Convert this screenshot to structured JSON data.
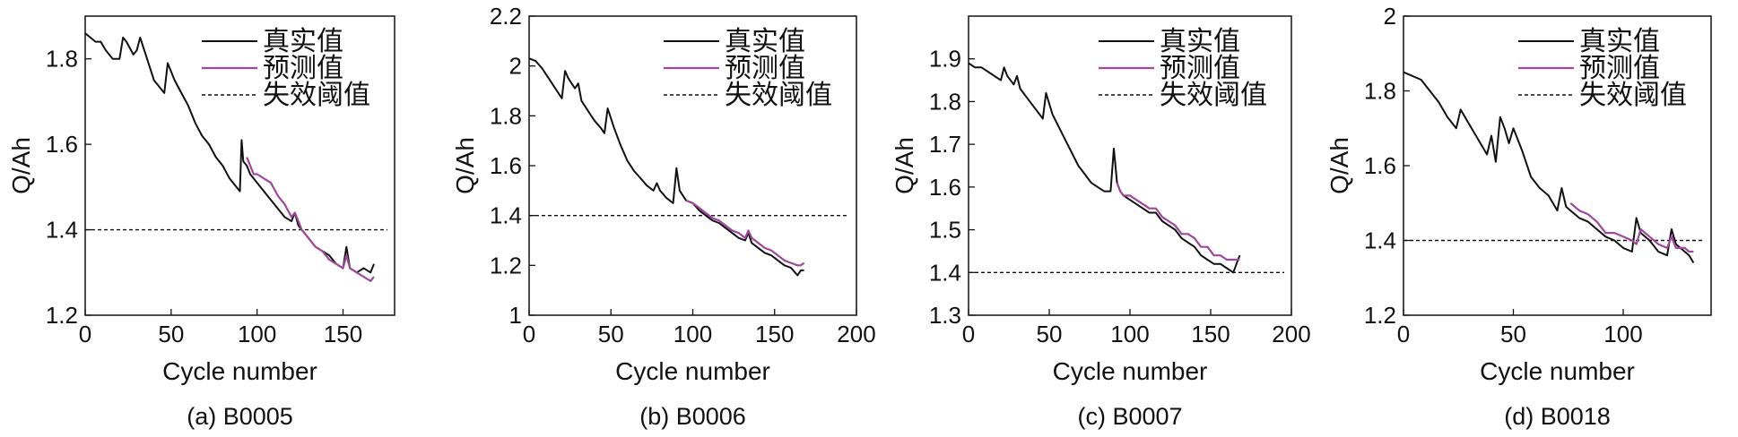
{
  "colors": {
    "actual": "#111111",
    "predicted": "#a0479b",
    "threshold": "#111111"
  },
  "chart_data": [
    {
      "type": "line",
      "caption": "(a) B0005",
      "xlabel": "Cycle number",
      "ylabel": "Q/Ah",
      "xlim": [
        0,
        180
      ],
      "ylim": [
        1.2,
        1.9
      ],
      "xticks": [
        "0",
        "50",
        "100",
        "150"
      ],
      "xtick_values": [
        0,
        50,
        100,
        150
      ],
      "yticks": [
        "1.2",
        "1.4",
        "1.6",
        "1.8"
      ],
      "ytick_values": [
        1.2,
        1.4,
        1.6,
        1.8
      ],
      "legend": [
        "真实值",
        "预测值",
        "失效阈值"
      ],
      "threshold": 1.4,
      "series": [
        {
          "name": "真实值",
          "x": [
            0,
            3,
            6,
            9,
            12,
            16,
            20,
            22,
            24,
            28,
            30,
            32,
            36,
            40,
            46,
            48,
            52,
            56,
            60,
            64,
            68,
            72,
            76,
            80,
            84,
            88,
            90,
            91,
            92,
            94,
            96,
            98,
            100,
            104,
            108,
            112,
            116,
            120,
            122,
            124,
            126,
            130,
            134,
            138,
            142,
            146,
            150,
            152,
            154,
            158,
            162,
            166,
            168
          ],
          "y": [
            1.86,
            1.85,
            1.84,
            1.84,
            1.82,
            1.8,
            1.8,
            1.85,
            1.84,
            1.81,
            1.82,
            1.85,
            1.8,
            1.75,
            1.72,
            1.79,
            1.75,
            1.72,
            1.69,
            1.65,
            1.62,
            1.6,
            1.57,
            1.55,
            1.52,
            1.5,
            1.49,
            1.61,
            1.56,
            1.55,
            1.53,
            1.52,
            1.51,
            1.49,
            1.47,
            1.45,
            1.43,
            1.42,
            1.44,
            1.41,
            1.4,
            1.38,
            1.36,
            1.35,
            1.34,
            1.32,
            1.31,
            1.36,
            1.31,
            1.3,
            1.31,
            1.3,
            1.32
          ]
        },
        {
          "name": "预测值",
          "x": [
            94,
            96,
            98,
            100,
            104,
            108,
            112,
            116,
            120,
            122,
            124,
            126,
            130,
            134,
            138,
            142,
            146,
            150,
            152,
            154,
            158,
            162,
            166,
            168
          ],
          "y": [
            1.57,
            1.55,
            1.53,
            1.53,
            1.52,
            1.51,
            1.48,
            1.46,
            1.43,
            1.44,
            1.42,
            1.4,
            1.38,
            1.36,
            1.35,
            1.33,
            1.32,
            1.31,
            1.34,
            1.31,
            1.3,
            1.29,
            1.28,
            1.29
          ]
        }
      ]
    },
    {
      "type": "line",
      "caption": "(b) B0006",
      "xlabel": "Cycle number",
      "ylabel": "Q/Ah",
      "xlim": [
        0,
        200
      ],
      "ylim": [
        1.0,
        2.2
      ],
      "xticks": [
        "0",
        "50",
        "100",
        "150",
        "200"
      ],
      "xtick_values": [
        0,
        50,
        100,
        150,
        200
      ],
      "yticks": [
        "1",
        "1.2",
        "1.4",
        "1.6",
        "1.8",
        "2",
        "2.2"
      ],
      "ytick_values": [
        1.0,
        1.2,
        1.4,
        1.6,
        1.8,
        2.0,
        2.2
      ],
      "legend": [
        "真实值",
        "预测值",
        "失效阈值"
      ],
      "threshold": 1.4,
      "series": [
        {
          "name": "真实值",
          "x": [
            0,
            4,
            8,
            12,
            16,
            20,
            22,
            24,
            28,
            30,
            32,
            36,
            40,
            44,
            46,
            48,
            52,
            56,
            60,
            64,
            68,
            72,
            76,
            78,
            80,
            84,
            88,
            90,
            92,
            94,
            96,
            100,
            104,
            108,
            112,
            116,
            120,
            124,
            128,
            132,
            134,
            136,
            140,
            144,
            148,
            152,
            156,
            160,
            164,
            166,
            168
          ],
          "y": [
            2.03,
            2.02,
            1.99,
            1.95,
            1.91,
            1.87,
            1.98,
            1.95,
            1.91,
            1.93,
            1.86,
            1.82,
            1.78,
            1.75,
            1.73,
            1.83,
            1.75,
            1.68,
            1.62,
            1.58,
            1.55,
            1.52,
            1.5,
            1.53,
            1.5,
            1.47,
            1.45,
            1.59,
            1.5,
            1.48,
            1.46,
            1.45,
            1.42,
            1.4,
            1.38,
            1.37,
            1.35,
            1.33,
            1.31,
            1.3,
            1.33,
            1.29,
            1.27,
            1.25,
            1.24,
            1.22,
            1.2,
            1.19,
            1.16,
            1.18,
            1.18
          ]
        },
        {
          "name": "预测值",
          "x": [
            96,
            100,
            104,
            108,
            112,
            116,
            120,
            124,
            128,
            132,
            134,
            136,
            140,
            144,
            148,
            152,
            156,
            160,
            164,
            166,
            168
          ],
          "y": [
            1.46,
            1.45,
            1.43,
            1.41,
            1.39,
            1.38,
            1.36,
            1.34,
            1.33,
            1.31,
            1.34,
            1.31,
            1.29,
            1.27,
            1.26,
            1.24,
            1.22,
            1.21,
            1.2,
            1.2,
            1.21
          ]
        }
      ]
    },
    {
      "type": "line",
      "caption": "(c) B0007",
      "xlabel": "Cycle number",
      "ylabel": "Q/Ah",
      "xlim": [
        0,
        200
      ],
      "ylim": [
        1.3,
        2.0
      ],
      "xticks": [
        "0",
        "50",
        "100",
        "150",
        "200"
      ],
      "xtick_values": [
        0,
        50,
        100,
        150,
        200
      ],
      "yticks": [
        "1.3",
        "1.4",
        "1.5",
        "1.6",
        "1.7",
        "1.8",
        "1.9"
      ],
      "ytick_values": [
        1.3,
        1.4,
        1.5,
        1.6,
        1.7,
        1.8,
        1.9
      ],
      "legend": [
        "真实值",
        "预测值",
        "失效阈值"
      ],
      "threshold": 1.4,
      "series": [
        {
          "name": "真实值",
          "x": [
            0,
            4,
            8,
            12,
            16,
            20,
            22,
            24,
            28,
            30,
            32,
            36,
            40,
            44,
            46,
            48,
            52,
            56,
            60,
            64,
            68,
            72,
            76,
            80,
            84,
            88,
            90,
            92,
            94,
            96,
            100,
            104,
            108,
            112,
            116,
            120,
            124,
            128,
            132,
            136,
            140,
            144,
            148,
            152,
            156,
            160,
            164,
            166,
            168
          ],
          "y": [
            1.89,
            1.88,
            1.88,
            1.87,
            1.86,
            1.85,
            1.88,
            1.86,
            1.84,
            1.86,
            1.83,
            1.81,
            1.79,
            1.77,
            1.76,
            1.82,
            1.77,
            1.74,
            1.71,
            1.68,
            1.65,
            1.63,
            1.61,
            1.6,
            1.59,
            1.59,
            1.69,
            1.61,
            1.59,
            1.58,
            1.57,
            1.56,
            1.55,
            1.54,
            1.54,
            1.52,
            1.51,
            1.5,
            1.48,
            1.47,
            1.46,
            1.44,
            1.43,
            1.42,
            1.42,
            1.41,
            1.4,
            1.42,
            1.44
          ]
        },
        {
          "name": "预测值",
          "x": [
            92,
            94,
            96,
            100,
            104,
            108,
            112,
            116,
            120,
            124,
            128,
            132,
            136,
            140,
            144,
            148,
            152,
            156,
            160,
            164,
            166,
            168
          ],
          "y": [
            1.61,
            1.59,
            1.58,
            1.58,
            1.57,
            1.56,
            1.55,
            1.55,
            1.53,
            1.52,
            1.51,
            1.49,
            1.49,
            1.48,
            1.46,
            1.46,
            1.44,
            1.44,
            1.43,
            1.43,
            1.43,
            1.43
          ]
        }
      ]
    },
    {
      "type": "line",
      "caption": "(d) B0018",
      "xlabel": "Cycle number",
      "ylabel": "Q/Ah",
      "xlim": [
        0,
        140
      ],
      "ylim": [
        1.2,
        2.0
      ],
      "xticks": [
        "0",
        "50",
        "100"
      ],
      "xtick_values": [
        0,
        50,
        100
      ],
      "yticks": [
        "1.2",
        "1.4",
        "1.6",
        "1.8",
        "2"
      ],
      "ytick_values": [
        1.2,
        1.4,
        1.6,
        1.8,
        2.0
      ],
      "legend": [
        "真实值",
        "预测值",
        "失效阈值"
      ],
      "threshold": 1.4,
      "series": [
        {
          "name": "真实值",
          "x": [
            0,
            4,
            8,
            12,
            16,
            20,
            24,
            26,
            30,
            34,
            38,
            40,
            42,
            44,
            46,
            48,
            50,
            54,
            58,
            62,
            66,
            70,
            72,
            74,
            76,
            80,
            84,
            88,
            92,
            96,
            100,
            104,
            106,
            108,
            112,
            116,
            120,
            122,
            124,
            128,
            130,
            132
          ],
          "y": [
            1.85,
            1.84,
            1.83,
            1.8,
            1.77,
            1.73,
            1.7,
            1.75,
            1.71,
            1.67,
            1.63,
            1.68,
            1.61,
            1.73,
            1.7,
            1.66,
            1.7,
            1.64,
            1.57,
            1.54,
            1.52,
            1.48,
            1.54,
            1.49,
            1.48,
            1.46,
            1.45,
            1.43,
            1.41,
            1.4,
            1.38,
            1.37,
            1.46,
            1.42,
            1.4,
            1.37,
            1.36,
            1.43,
            1.39,
            1.37,
            1.36,
            1.34
          ]
        },
        {
          "name": "预测值",
          "x": [
            76,
            80,
            84,
            88,
            92,
            96,
            100,
            104,
            106,
            108,
            112,
            116,
            120,
            122,
            124,
            128,
            130,
            132
          ],
          "y": [
            1.5,
            1.48,
            1.47,
            1.45,
            1.42,
            1.42,
            1.41,
            1.4,
            1.39,
            1.43,
            1.41,
            1.39,
            1.38,
            1.41,
            1.38,
            1.38,
            1.37,
            1.37
          ]
        }
      ]
    }
  ]
}
